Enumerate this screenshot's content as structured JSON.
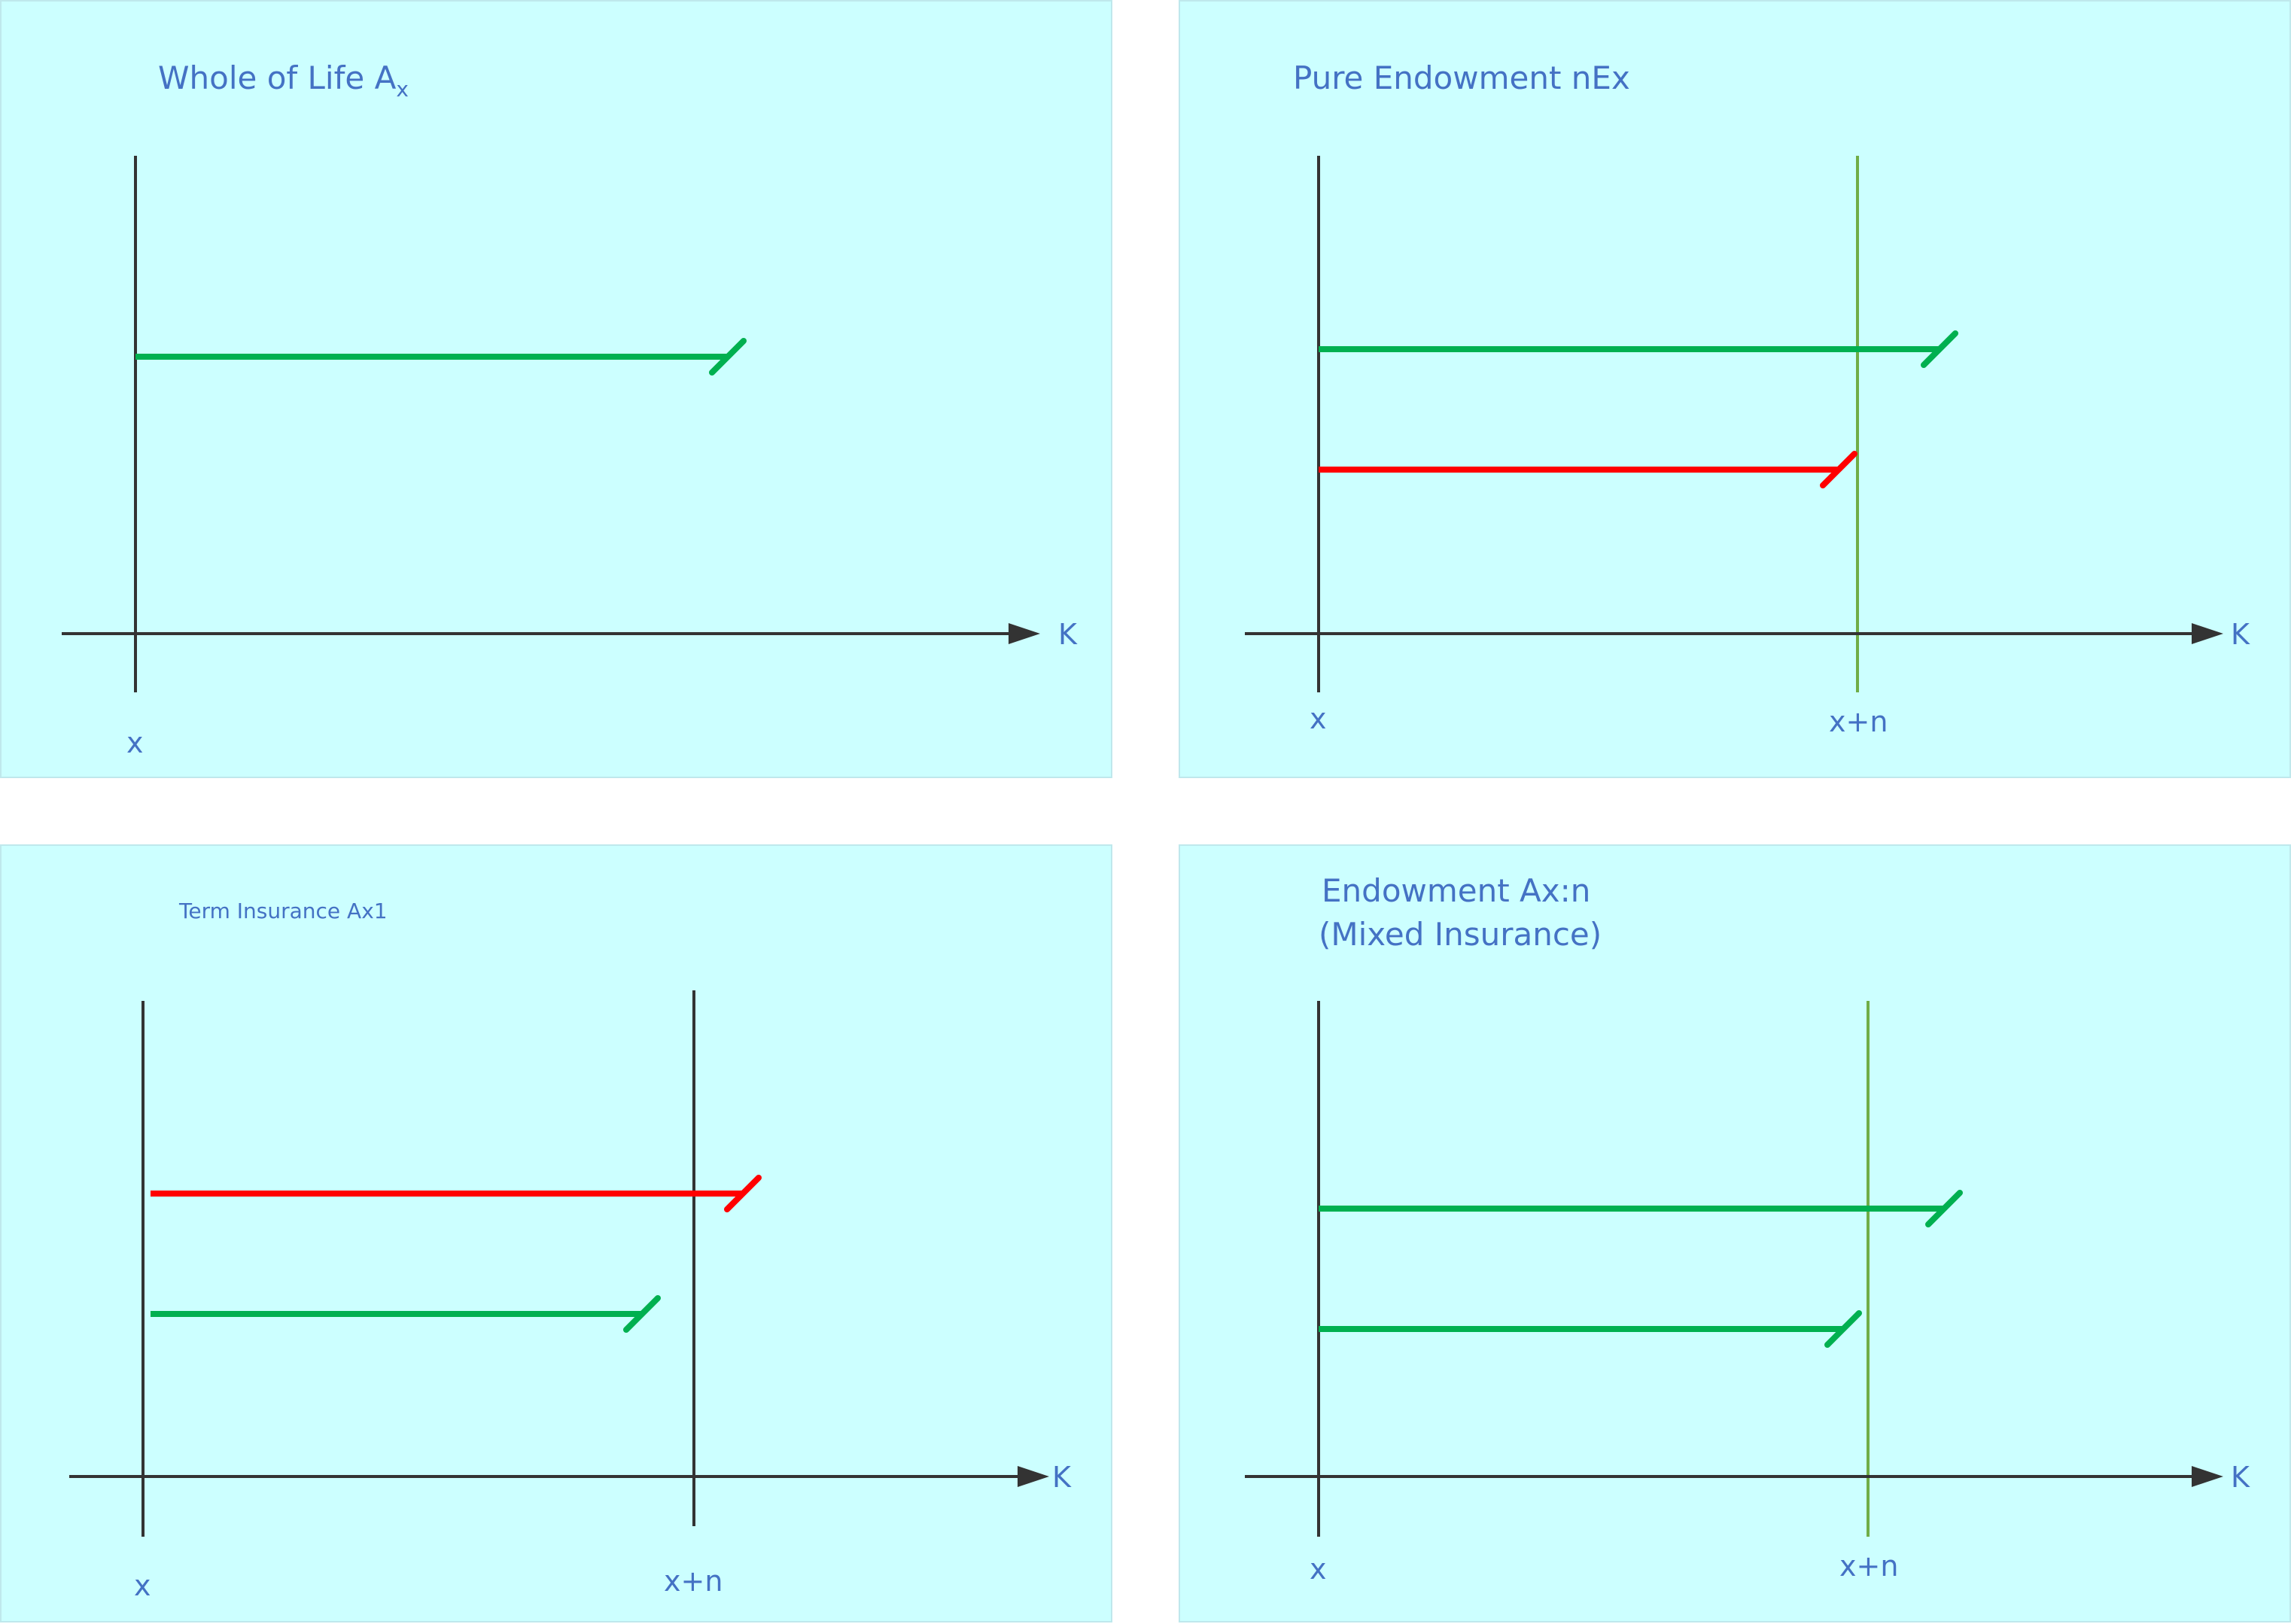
{
  "panels": {
    "whole_life": {
      "title": "Whole of Life A",
      "title_sub": "x",
      "axis_label": "K",
      "x_label": "x",
      "line_colors": [
        "#00b050"
      ]
    },
    "pure_endowment": {
      "title": "Pure Endowment nEx",
      "axis_label": "K",
      "x_label": "x",
      "xn_label": "x+n",
      "line_colors": [
        "#00b050",
        "#ff0000"
      ]
    },
    "term_insurance": {
      "title": "Term Insurance  Ax1",
      "axis_label": "K",
      "x_label": "x",
      "xn_label": "x+n",
      "line_colors": [
        "#ff0000",
        "#00b050"
      ]
    },
    "endowment": {
      "title_line1": "Endowment  Ax:n",
      "title_line2": "(Mixed Insurance)",
      "axis_label": "K",
      "x_label": "x",
      "xn_label": "x+n",
      "line_colors": [
        "#00b050",
        "#00b050"
      ]
    }
  },
  "colors": {
    "panel_bg": "#ccffff",
    "axis": "#333333",
    "text": "#4472c4",
    "green": "#00b050",
    "red": "#ff0000",
    "light_green_marker": "#70ad47"
  }
}
